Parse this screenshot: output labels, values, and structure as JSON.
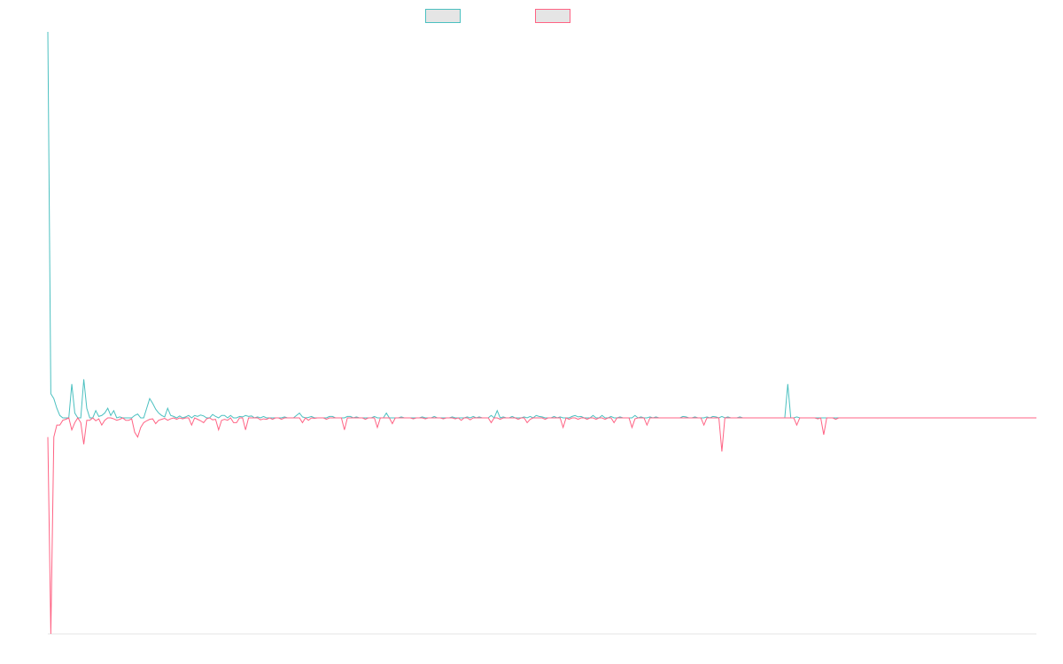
{
  "colors": {
    "series_a": "#4bc0c0",
    "series_b": "#ff6384",
    "legend_fill": "#e5e5e5",
    "axis": "#e5e5e5"
  },
  "chart_data": {
    "type": "line",
    "grid": false,
    "legend_position": "top-center",
    "ylim": [
      -45,
      80
    ],
    "series": [
      {
        "values": [
          80,
          5,
          4,
          2,
          0.5,
          0,
          0,
          0,
          7,
          1,
          0,
          0,
          8,
          2,
          0,
          0,
          1.5,
          0.3,
          0.5,
          1,
          2,
          0.5,
          1.5,
          0,
          0.2,
          0,
          0,
          0,
          0,
          0.5,
          0.8,
          0,
          0,
          2,
          4,
          3,
          1.8,
          1,
          0.5,
          0.2,
          2,
          0.5,
          0.3,
          0,
          0.4,
          0,
          0.2,
          0.5,
          0,
          0.5,
          0.3,
          0.6,
          0.4,
          0,
          0,
          0.7,
          0.3,
          0,
          0.5,
          0.5,
          0,
          0.5,
          0,
          0,
          0.3,
          0.2,
          0.5,
          0.3,
          0.4,
          0,
          0.2,
          0,
          0.3,
          0,
          0,
          0,
          0,
          0,
          0,
          0.2,
          0,
          0,
          0,
          0.5,
          1,
          0.2,
          0,
          0.1,
          0.3,
          0,
          0,
          0,
          0,
          0,
          0.3,
          0.3,
          0,
          0,
          0,
          0,
          0.3,
          0.3,
          0,
          0.2,
          0,
          0,
          0,
          0,
          0,
          0.3,
          0,
          0,
          0,
          1,
          0,
          0,
          0,
          0,
          0.2,
          0,
          0,
          0,
          0,
          0,
          0,
          0.2,
          0,
          0,
          0,
          0.3,
          0,
          0,
          0,
          0,
          0,
          0.2,
          0,
          0,
          0,
          0,
          0.2,
          0,
          0.3,
          0,
          0.2,
          0,
          0,
          0,
          0.5,
          0,
          1.5,
          0,
          0.2,
          0,
          0,
          0.3,
          0,
          0,
          0,
          0.2,
          0,
          0.3,
          0,
          0.5,
          0.3,
          0.2,
          0,
          0,
          0,
          0.3,
          0,
          0.2,
          0,
          0,
          0,
          0.3,
          0.5,
          0.2,
          0.3,
          0,
          0,
          0,
          0.5,
          0,
          0,
          0.5,
          0,
          0,
          0.3,
          0,
          0,
          0.2,
          0,
          0,
          0,
          0,
          0.5,
          0,
          0.2,
          0,
          0,
          0.2,
          0,
          0.2,
          0,
          0,
          0,
          0,
          0,
          0,
          0,
          0,
          0.3,
          0.2,
          0,
          0,
          0.2,
          0,
          0,
          0,
          0.2,
          0,
          0.3,
          0.2,
          0,
          0.3,
          0,
          0.2,
          0,
          0,
          0,
          0.2,
          0,
          0,
          0,
          0,
          0,
          0,
          0,
          0,
          0,
          0,
          0,
          0,
          0,
          0,
          0,
          7,
          0,
          0,
          0.2,
          0,
          0,
          0,
          0,
          0,
          0,
          0,
          0,
          0,
          0,
          0,
          0,
          0,
          0,
          0,
          0,
          0,
          0,
          0,
          0,
          0,
          0,
          0,
          0,
          0,
          0,
          0,
          0,
          0,
          0,
          0,
          0,
          0,
          0,
          0,
          0,
          0,
          0,
          0,
          0,
          0,
          0,
          0,
          0,
          0,
          0,
          0,
          0,
          0,
          0,
          0,
          0,
          0,
          0,
          0,
          0,
          0,
          0,
          0,
          0,
          0,
          0,
          0,
          0,
          0,
          0,
          0,
          0,
          0,
          0,
          0,
          0,
          0,
          0,
          0,
          0,
          0,
          0,
          0,
          0
        ]
      },
      {
        "values": [
          -4,
          -45,
          -4,
          -1.5,
          -1.5,
          -0.5,
          -0.3,
          0,
          -2.5,
          -1,
          0,
          -1,
          -5.5,
          -0.5,
          -0.5,
          0,
          -0.6,
          -0.2,
          -1.5,
          -0.5,
          0,
          0,
          -0.2,
          -0.5,
          -0.3,
          0,
          -0.5,
          -0.5,
          -0.2,
          -3,
          -4,
          -2,
          -1,
          -0.6,
          -0.3,
          -0.2,
          -1.2,
          -0.5,
          -0.3,
          -0.1,
          -0.5,
          -0.2,
          0,
          -0.3,
          0,
          -0.2,
          0,
          0,
          -1.5,
          0,
          -0.3,
          -0.6,
          -1,
          -0.2,
          0,
          -0.4,
          -0.3,
          -2.5,
          -0.5,
          -0.3,
          -0.5,
          0,
          -1,
          -1,
          0,
          0,
          -2.5,
          0,
          0,
          0,
          0,
          -0.4,
          -0.2,
          -0.3,
          0,
          -0.3,
          0,
          0,
          -0.3,
          0,
          0,
          0,
          0,
          0,
          0,
          -1,
          0,
          -0.5,
          0,
          -0.1,
          0,
          0,
          0,
          -0.3,
          0,
          0,
          0,
          0,
          0,
          -2.5,
          0,
          0,
          0,
          0,
          0,
          0,
          -0.3,
          0,
          0,
          0,
          -2,
          0,
          0,
          0,
          0,
          -1.2,
          0,
          0,
          0,
          0,
          0,
          0,
          -0.2,
          0,
          0,
          0,
          -0.2,
          0,
          0,
          0,
          0,
          0,
          -0.2,
          0,
          0,
          0,
          -0.2,
          0,
          -0.5,
          0,
          0,
          -0.4,
          0,
          0,
          0,
          0,
          0,
          0,
          -1,
          0,
          0,
          -0.3,
          0,
          0,
          0,
          0,
          0,
          -0.3,
          0,
          0,
          -1,
          -0.3,
          0,
          0,
          0,
          0,
          -0.3,
          0,
          0,
          0,
          0,
          0,
          -2,
          0,
          -0.3,
          0,
          0,
          -0.3,
          0,
          0,
          -0.3,
          0,
          0,
          -0.3,
          0,
          0,
          -0.3,
          0,
          0,
          -1,
          0,
          0,
          0,
          0,
          0,
          -2,
          -0.2,
          0,
          0,
          0,
          -1.5,
          0,
          0,
          0,
          0,
          0,
          0,
          0,
          0,
          0,
          0,
          0,
          0,
          0,
          0,
          0,
          0,
          0,
          0,
          -1.5,
          0,
          0,
          0,
          0,
          0,
          -7,
          0,
          0,
          0,
          0,
          0,
          0,
          0,
          0,
          0,
          0,
          0,
          0,
          0,
          0,
          0,
          0,
          0,
          0,
          0,
          0,
          0,
          0,
          0,
          0,
          -1.5,
          0,
          0,
          0,
          0,
          0,
          0,
          -0.2,
          0,
          -3.5,
          0,
          0,
          0,
          -0.3,
          0,
          0,
          0,
          0,
          0,
          0,
          0,
          0,
          0,
          0,
          0,
          0,
          0,
          0,
          0,
          0,
          0,
          0,
          0,
          0,
          0,
          0,
          0,
          0,
          0,
          0,
          0,
          0,
          0,
          0,
          0,
          0,
          0,
          0,
          0,
          0,
          0,
          0,
          0,
          0,
          0,
          0,
          0,
          0,
          0,
          0,
          0,
          0,
          0,
          0,
          0,
          0,
          0,
          0,
          0,
          0,
          0,
          0,
          0,
          0,
          0,
          0,
          0,
          0,
          0,
          0,
          0
        ]
      }
    ]
  }
}
